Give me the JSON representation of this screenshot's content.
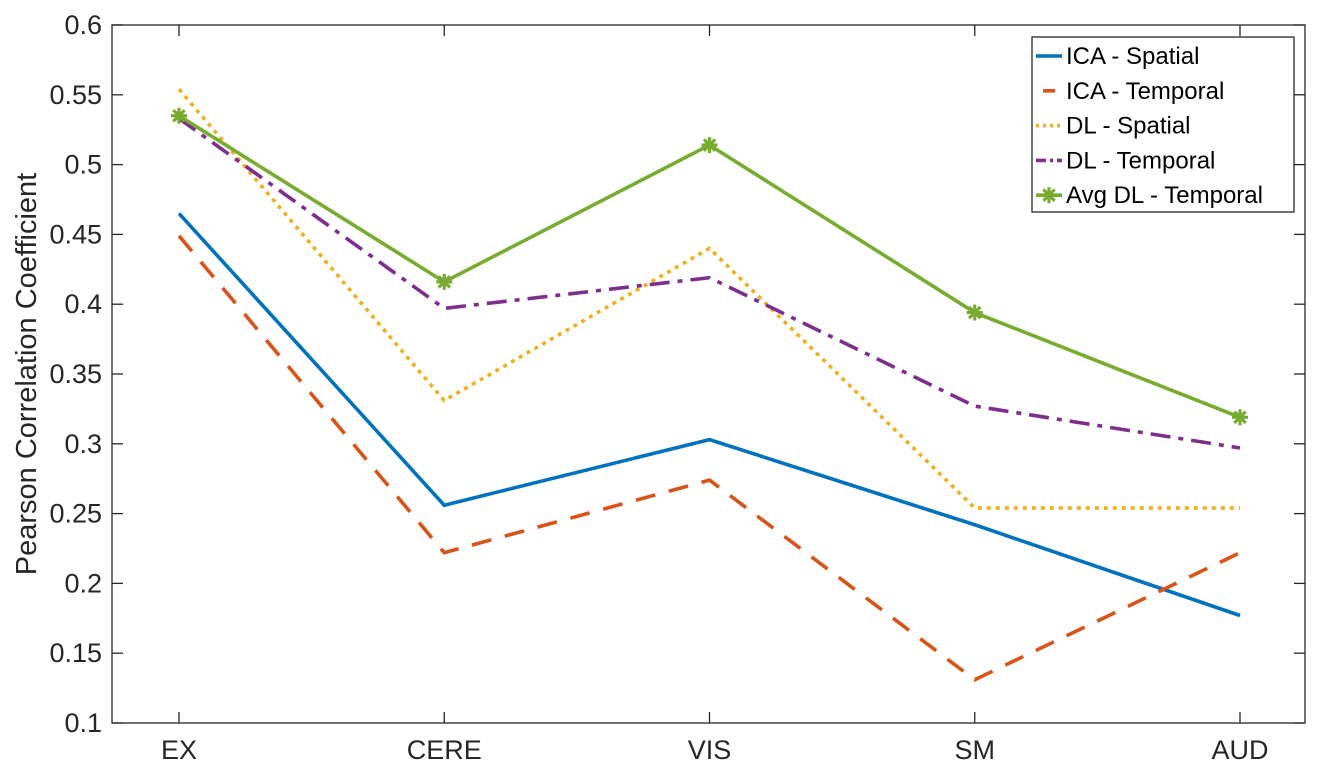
{
  "chart_data": {
    "type": "line",
    "title": "",
    "xlabel": "",
    "ylabel": "Pearson Correlation Coefficient",
    "categories": [
      "EX",
      "CERE",
      "VIS",
      "SM",
      "AUD"
    ],
    "ylim": [
      0.1,
      0.6
    ],
    "yticks": [
      "0.1",
      "0.15",
      "0.2",
      "0.25",
      "0.3",
      "0.35",
      "0.4",
      "0.45",
      "0.5",
      "0.55",
      "0.6"
    ],
    "grid": false,
    "legend_position": "top-right",
    "series": [
      {
        "name": "ICA - Spatial",
        "values": [
          0.465,
          0.256,
          0.303,
          0.242,
          0.177
        ],
        "color": "#0072BD",
        "style": "solid",
        "marker": "none"
      },
      {
        "name": "ICA - Temporal",
        "values": [
          0.449,
          0.222,
          0.274,
          0.131,
          0.222
        ],
        "color": "#D95319",
        "style": "dashed",
        "marker": "none"
      },
      {
        "name": "DL - Spatial",
        "values": [
          0.554,
          0.331,
          0.44,
          0.254,
          0.254
        ],
        "color": "#EDB120",
        "style": "dotted",
        "marker": "none"
      },
      {
        "name": "DL - Temporal",
        "values": [
          0.533,
          0.397,
          0.419,
          0.327,
          0.297
        ],
        "color": "#7E2F8E",
        "style": "dashdot",
        "marker": "none"
      },
      {
        "name": "Avg DL - Temporal",
        "values": [
          0.535,
          0.416,
          0.514,
          0.394,
          0.319
        ],
        "color": "#77AC30",
        "style": "solid",
        "marker": "asterisk"
      }
    ]
  }
}
